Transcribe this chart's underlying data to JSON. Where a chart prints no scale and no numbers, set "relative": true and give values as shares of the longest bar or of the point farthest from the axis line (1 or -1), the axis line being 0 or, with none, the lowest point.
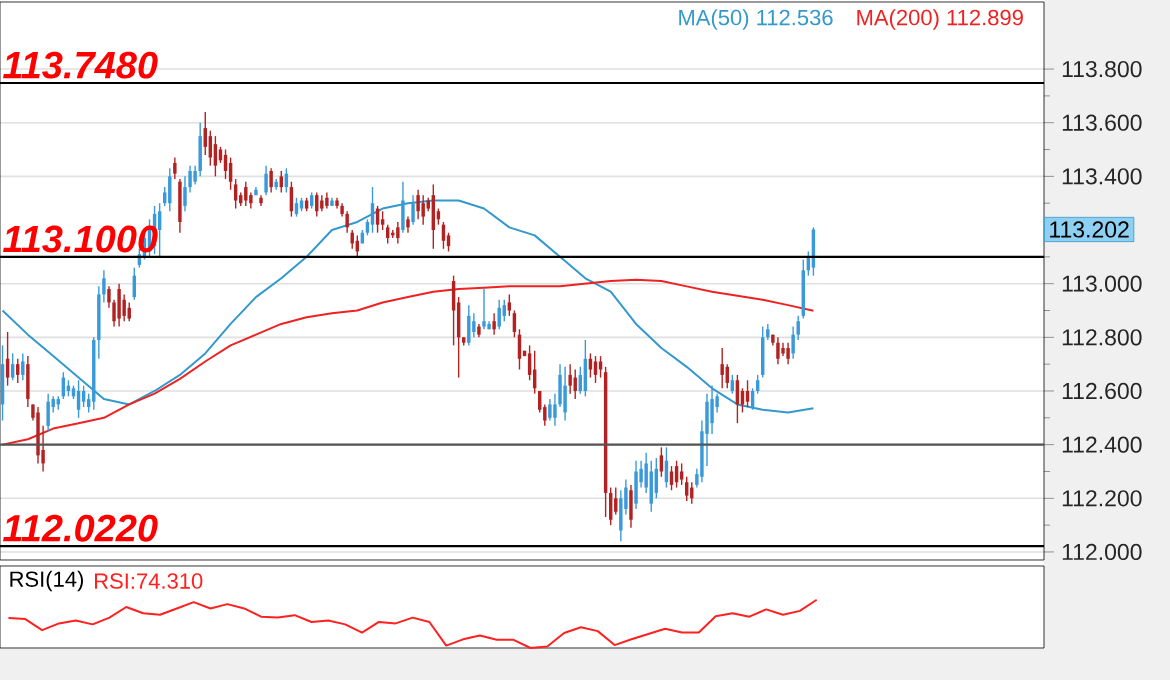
{
  "chart_data": [
    {
      "type": "candlestick",
      "categories": [
        null,
        null,
        null,
        null,
        null,
        null,
        null,
        null,
        null,
        null,
        null,
        null,
        null,
        null,
        null,
        null,
        null,
        null,
        null,
        null,
        null,
        null,
        null,
        null,
        null,
        null,
        null,
        null,
        null,
        null,
        null,
        null,
        null,
        null,
        null,
        null,
        null,
        null,
        null,
        null,
        null,
        null,
        null,
        null,
        null,
        null,
        null,
        null,
        null,
        null,
        null,
        null,
        null,
        null,
        null,
        null,
        null,
        null,
        null,
        null,
        null,
        null,
        null,
        null,
        null,
        null,
        null,
        null,
        null,
        null,
        null,
        null,
        null,
        null,
        null,
        null,
        null,
        null,
        null,
        null,
        null,
        null,
        null,
        null,
        null,
        null,
        null,
        null,
        null,
        null,
        null,
        null,
        null,
        null,
        null,
        null,
        null,
        null,
        null,
        null,
        null,
        null,
        null,
        null,
        null,
        null,
        null,
        null,
        null,
        null,
        null,
        null,
        null,
        null,
        null,
        null,
        null,
        null,
        null,
        null,
        null,
        null,
        null,
        null,
        null,
        null,
        null,
        null,
        null,
        null,
        null,
        null,
        null,
        null,
        null,
        null,
        null,
        null,
        null,
        null,
        null,
        null,
        null,
        null,
        null,
        null,
        null,
        null,
        null,
        null,
        null,
        null,
        null,
        null,
        null,
        null,
        null,
        null,
        null,
        null,
        null,
        null,
        null,
        null,
        null,
        null,
        null,
        null,
        null,
        null,
        null,
        null,
        null,
        null,
        null,
        null,
        null,
        null,
        null,
        null,
        null,
        null,
        null,
        null,
        null,
        null,
        null,
        null,
        null,
        null,
        null,
        null,
        null,
        null,
        null,
        null,
        null,
        null,
        null,
        null,
        null,
        null,
        null,
        null,
        null,
        null
      ],
      "ohlc": [
        [
          112.55,
          112.77,
          112.49,
          112.7
        ],
        [
          112.72,
          112.82,
          112.62,
          112.65
        ],
        [
          112.65,
          112.74,
          112.64,
          112.7
        ],
        [
          112.7,
          112.72,
          112.63,
          112.66
        ],
        [
          112.66,
          112.74,
          112.64,
          112.71
        ],
        [
          112.7,
          112.73,
          112.54,
          112.57
        ],
        [
          112.55,
          112.55,
          112.49,
          112.5
        ],
        [
          112.52,
          112.54,
          112.33,
          112.36
        ],
        [
          112.38,
          112.47,
          112.3,
          112.33
        ],
        [
          112.47,
          112.59,
          112.45,
          112.56
        ],
        [
          112.54,
          112.58,
          112.52,
          112.57
        ],
        [
          112.55,
          112.58,
          112.53,
          112.57
        ],
        [
          112.58,
          112.67,
          112.57,
          112.65
        ],
        [
          112.6,
          112.64,
          112.58,
          112.62
        ],
        [
          112.58,
          112.62,
          112.57,
          112.61
        ],
        [
          112.53,
          112.64,
          112.5,
          112.6
        ],
        [
          112.56,
          112.62,
          112.54,
          112.6
        ],
        [
          112.54,
          112.59,
          112.52,
          112.57
        ],
        [
          112.56,
          112.8,
          112.53,
          112.79
        ],
        [
          112.79,
          112.99,
          112.72,
          112.96
        ],
        [
          112.96,
          113.05,
          112.93,
          113.02
        ],
        [
          112.98,
          112.99,
          112.91,
          112.93
        ],
        [
          112.93,
          112.94,
          112.84,
          112.86
        ],
        [
          112.98,
          113.0,
          112.84,
          112.87
        ],
        [
          112.94,
          112.96,
          112.86,
          112.88
        ],
        [
          112.91,
          112.93,
          112.86,
          112.87
        ],
        [
          112.95,
          113.06,
          112.94,
          113.03
        ],
        [
          113.07,
          113.13,
          113.06,
          113.11
        ],
        [
          113.1,
          113.19,
          113.09,
          113.17
        ],
        [
          113.12,
          113.24,
          113.1,
          113.21
        ],
        [
          113.14,
          113.29,
          113.11,
          113.26
        ],
        [
          113.2,
          113.3,
          113.1,
          113.27
        ],
        [
          113.3,
          113.36,
          113.29,
          113.34
        ],
        [
          113.3,
          113.43,
          113.27,
          113.4
        ],
        [
          113.45,
          113.47,
          113.39,
          113.41
        ],
        [
          113.38,
          113.39,
          113.19,
          113.23
        ],
        [
          113.29,
          113.4,
          113.27,
          113.36
        ],
        [
          113.36,
          113.44,
          113.34,
          113.42
        ],
        [
          113.38,
          113.44,
          113.37,
          113.42
        ],
        [
          113.42,
          113.6,
          113.4,
          113.55
        ],
        [
          113.58,
          113.64,
          113.48,
          113.51
        ],
        [
          113.55,
          113.57,
          113.44,
          113.47
        ],
        [
          113.52,
          113.55,
          113.4,
          113.44
        ],
        [
          113.5,
          113.51,
          113.45,
          113.46
        ],
        [
          113.48,
          113.5,
          113.39,
          113.42
        ],
        [
          113.45,
          113.47,
          113.35,
          113.38
        ],
        [
          113.37,
          113.39,
          113.28,
          113.31
        ],
        [
          113.33,
          113.34,
          113.29,
          113.3
        ],
        [
          113.36,
          113.38,
          113.29,
          113.31
        ],
        [
          113.33,
          113.34,
          113.28,
          113.3
        ],
        [
          113.33,
          113.36,
          113.33,
          113.35
        ],
        [
          113.32,
          113.33,
          113.29,
          113.3
        ],
        [
          113.34,
          113.44,
          113.33,
          113.41
        ],
        [
          113.42,
          113.43,
          113.34,
          113.36
        ],
        [
          113.36,
          113.39,
          113.35,
          113.38
        ],
        [
          113.4,
          113.42,
          113.34,
          113.36
        ],
        [
          113.36,
          113.43,
          113.34,
          113.41
        ],
        [
          113.36,
          113.38,
          113.25,
          113.27
        ],
        [
          113.26,
          113.32,
          113.25,
          113.3
        ],
        [
          113.28,
          113.32,
          113.27,
          113.31
        ],
        [
          113.31,
          113.32,
          113.27,
          113.28
        ],
        [
          113.29,
          113.34,
          113.28,
          113.33
        ],
        [
          113.33,
          113.34,
          113.25,
          113.27
        ],
        [
          113.31,
          113.33,
          113.27,
          113.28
        ],
        [
          113.32,
          113.34,
          113.28,
          113.29
        ],
        [
          113.29,
          113.32,
          113.29,
          113.31
        ],
        [
          113.31,
          113.32,
          113.28,
          113.29
        ],
        [
          113.29,
          113.3,
          113.25,
          113.26
        ],
        [
          113.26,
          113.27,
          113.19,
          113.21
        ],
        [
          113.19,
          113.2,
          113.13,
          113.15
        ],
        [
          113.16,
          113.18,
          113.1,
          113.12
        ],
        [
          113.15,
          113.2,
          113.15,
          113.19
        ],
        [
          113.19,
          113.24,
          113.18,
          113.23
        ],
        [
          113.22,
          113.36,
          113.19,
          113.3
        ],
        [
          113.28,
          113.29,
          113.19,
          113.22
        ],
        [
          113.24,
          113.27,
          113.2,
          113.22
        ],
        [
          113.21,
          113.22,
          113.15,
          113.17
        ],
        [
          113.19,
          113.2,
          113.17,
          113.18
        ],
        [
          113.21,
          113.23,
          113.15,
          113.17
        ],
        [
          113.2,
          113.38,
          113.19,
          113.31
        ],
        [
          113.24,
          113.25,
          113.19,
          113.21
        ],
        [
          113.23,
          113.33,
          113.22,
          113.3
        ],
        [
          113.33,
          113.35,
          113.24,
          113.27
        ],
        [
          113.3,
          113.33,
          113.22,
          113.25
        ],
        [
          113.31,
          113.32,
          113.27,
          113.28
        ],
        [
          113.33,
          113.37,
          113.13,
          113.2
        ],
        [
          113.27,
          113.28,
          113.22,
          113.24
        ],
        [
          113.22,
          113.23,
          113.13,
          113.16
        ],
        [
          113.18,
          113.19,
          113.12,
          113.14
        ],
        [
          113.01,
          113.03,
          112.77,
          112.9
        ],
        [
          112.93,
          112.95,
          112.65,
          112.8
        ],
        [
          112.8,
          112.8,
          112.77,
          112.78
        ],
        [
          112.78,
          112.92,
          112.77,
          112.88
        ],
        [
          112.82,
          112.89,
          112.8,
          112.86
        ],
        [
          112.84,
          112.85,
          112.8,
          112.81
        ],
        [
          112.84,
          112.98,
          112.83,
          112.86
        ],
        [
          112.83,
          112.86,
          112.83,
          112.85
        ],
        [
          112.86,
          112.89,
          112.81,
          112.83
        ],
        [
          112.84,
          112.94,
          112.83,
          112.91
        ],
        [
          112.88,
          112.94,
          112.86,
          112.92
        ],
        [
          112.93,
          112.96,
          112.88,
          112.9
        ],
        [
          112.89,
          112.9,
          112.8,
          112.82
        ],
        [
          112.81,
          112.83,
          112.68,
          112.72
        ],
        [
          112.75,
          112.75,
          112.73,
          112.73
        ],
        [
          112.74,
          112.77,
          112.64,
          112.66
        ],
        [
          112.68,
          112.75,
          112.59,
          112.61
        ],
        [
          112.6,
          112.6,
          112.52,
          112.53
        ],
        [
          112.54,
          112.55,
          112.47,
          112.49
        ],
        [
          112.5,
          112.57,
          112.49,
          112.55
        ],
        [
          112.5,
          112.59,
          112.47,
          112.55
        ],
        [
          112.55,
          112.7,
          112.54,
          112.66
        ],
        [
          112.52,
          112.69,
          112.49,
          112.62
        ],
        [
          112.66,
          112.7,
          112.59,
          112.62
        ],
        [
          112.65,
          112.68,
          112.57,
          112.6
        ],
        [
          112.6,
          112.69,
          112.59,
          112.66
        ],
        [
          112.6,
          112.79,
          112.58,
          112.72
        ],
        [
          112.72,
          112.74,
          112.65,
          112.68
        ],
        [
          112.71,
          112.73,
          112.63,
          112.66
        ],
        [
          112.71,
          112.73,
          112.65,
          112.68
        ],
        [
          112.67,
          112.69,
          112.13,
          112.22
        ],
        [
          112.22,
          112.24,
          112.1,
          112.12
        ],
        [
          112.2,
          112.24,
          112.14,
          112.15
        ],
        [
          112.08,
          112.23,
          112.04,
          112.2
        ],
        [
          112.16,
          112.27,
          112.14,
          112.24
        ],
        [
          112.23,
          112.25,
          112.09,
          112.12
        ],
        [
          112.18,
          112.34,
          112.16,
          112.3
        ],
        [
          112.26,
          112.34,
          112.24,
          112.31
        ],
        [
          112.24,
          112.37,
          112.22,
          112.33
        ],
        [
          112.18,
          112.34,
          112.15,
          112.3
        ],
        [
          112.22,
          112.35,
          112.2,
          112.31
        ],
        [
          112.36,
          112.39,
          112.28,
          112.3
        ],
        [
          112.26,
          112.39,
          112.24,
          112.34
        ],
        [
          112.3,
          112.32,
          112.23,
          112.25
        ],
        [
          112.32,
          112.34,
          112.24,
          112.26
        ],
        [
          112.3,
          112.33,
          112.25,
          112.27
        ],
        [
          112.26,
          112.28,
          112.19,
          112.21
        ],
        [
          112.24,
          112.26,
          112.18,
          112.2
        ],
        [
          112.25,
          112.31,
          112.24,
          112.29
        ],
        [
          112.28,
          112.49,
          112.26,
          112.45
        ],
        [
          112.44,
          112.59,
          112.32,
          112.56
        ],
        [
          112.48,
          112.62,
          112.44,
          112.57
        ],
        [
          112.54,
          112.59,
          112.52,
          112.58
        ],
        [
          112.7,
          112.76,
          112.61,
          112.66
        ],
        [
          112.69,
          112.7,
          112.61,
          112.63
        ],
        [
          112.6,
          112.66,
          112.59,
          112.64
        ],
        [
          112.64,
          112.66,
          112.48,
          112.55
        ],
        [
          112.6,
          112.61,
          112.52,
          112.55
        ],
        [
          112.6,
          112.64,
          112.54,
          112.56
        ],
        [
          112.54,
          112.61,
          112.53,
          112.6
        ],
        [
          112.6,
          112.66,
          112.59,
          112.64
        ],
        [
          112.66,
          112.84,
          112.65,
          112.8
        ],
        [
          112.8,
          112.85,
          112.79,
          112.83
        ],
        [
          112.81,
          112.81,
          112.77,
          112.78
        ],
        [
          112.78,
          112.8,
          112.7,
          112.72
        ],
        [
          112.76,
          112.78,
          112.73,
          112.74
        ],
        [
          112.76,
          112.78,
          112.7,
          112.72
        ],
        [
          112.74,
          112.84,
          112.72,
          112.81
        ],
        [
          112.81,
          112.88,
          112.79,
          112.86
        ],
        [
          112.88,
          113.09,
          112.87,
          113.05
        ],
        [
          113.05,
          113.12,
          113.03,
          113.1
        ],
        [
          113.06,
          113.21,
          113.03,
          113.202
        ],
        null,
        null,
        null,
        null,
        null,
        null,
        null,
        null,
        null,
        null,
        null,
        null,
        null,
        null,
        null,
        null,
        null,
        null,
        null,
        null,
        null,
        null,
        null,
        null,
        null,
        null,
        null,
        null,
        null,
        null,
        null,
        null,
        null,
        null,
        null,
        null,
        null,
        null,
        null,
        null,
        null,
        null,
        null,
        null,
        null
      ],
      "series": [
        {
          "type": "line",
          "name": "MA(50) 112.536",
          "color": "#3399cc",
          "values": [
            112.9,
            null,
            null,
            null,
            null,
            112.81,
            null,
            null,
            null,
            null,
            112.73,
            null,
            null,
            null,
            null,
            112.65,
            null,
            null,
            null,
            null,
            112.57,
            null,
            null,
            null,
            null,
            112.55,
            null,
            null,
            null,
            null,
            112.6,
            null,
            null,
            null,
            null,
            112.66,
            null,
            null,
            null,
            null,
            112.74,
            null,
            null,
            null,
            null,
            112.85,
            null,
            null,
            null,
            null,
            112.95,
            null,
            null,
            null,
            null,
            113.02,
            null,
            null,
            null,
            null,
            113.1,
            null,
            null,
            null,
            null,
            113.2,
            null,
            null,
            null,
            null,
            113.23,
            null,
            null,
            null,
            null,
            113.28,
            null,
            null,
            null,
            null,
            113.3,
            null,
            null,
            null,
            null,
            113.31,
            null,
            null,
            null,
            null,
            113.31,
            null,
            null,
            null,
            null,
            113.28,
            null,
            null,
            null,
            null,
            113.21,
            null,
            null,
            null,
            null,
            113.18,
            null,
            null,
            null,
            null,
            113.1,
            null,
            null,
            null,
            null,
            113.02,
            null,
            null,
            null,
            null,
            112.97,
            null,
            null,
            null,
            null,
            112.85,
            null,
            null,
            null,
            null,
            112.76,
            null,
            null,
            null,
            null,
            112.69,
            null,
            null,
            null,
            null,
            112.61,
            null,
            null,
            null,
            null,
            112.55,
            null,
            null,
            null,
            null,
            112.53,
            null,
            null,
            null,
            null,
            112.52,
            null,
            null,
            null,
            null,
            112.536,
            null,
            null,
            null,
            null,
            null,
            null,
            null,
            null,
            null,
            null,
            null,
            null,
            null,
            null,
            null,
            null,
            null,
            null,
            null,
            null,
            null,
            null,
            null,
            null,
            null,
            null,
            null,
            null,
            null,
            null,
            null,
            null,
            null,
            null,
            null,
            null,
            null,
            null,
            null,
            null,
            null,
            null,
            null,
            null,
            null
          ]
        },
        {
          "type": "line",
          "name": "MA(200) 112.899",
          "color": "#ee2222",
          "values": [
            112.4,
            null,
            null,
            null,
            null,
            112.42,
            null,
            null,
            null,
            null,
            112.46,
            null,
            null,
            null,
            null,
            112.48,
            null,
            null,
            null,
            null,
            112.5,
            null,
            null,
            null,
            null,
            112.55,
            null,
            null,
            null,
            null,
            112.59,
            null,
            null,
            null,
            null,
            112.645,
            null,
            null,
            null,
            null,
            112.71,
            null,
            null,
            null,
            null,
            112.77,
            null,
            null,
            null,
            null,
            112.81,
            null,
            null,
            null,
            null,
            112.85,
            null,
            null,
            null,
            null,
            112.875,
            null,
            null,
            null,
            null,
            112.89,
            null,
            null,
            null,
            null,
            112.9,
            null,
            null,
            null,
            null,
            112.93,
            null,
            null,
            null,
            null,
            112.95,
            null,
            null,
            null,
            null,
            112.97,
            null,
            null,
            null,
            null,
            112.98,
            null,
            null,
            null,
            null,
            112.985,
            null,
            null,
            null,
            null,
            112.99,
            null,
            null,
            null,
            null,
            112.99,
            null,
            null,
            null,
            null,
            112.99,
            null,
            null,
            null,
            null,
            113.0,
            null,
            null,
            null,
            null,
            113.01,
            null,
            null,
            null,
            null,
            113.015,
            null,
            null,
            null,
            null,
            113.01,
            null,
            null,
            null,
            null,
            112.99,
            null,
            null,
            null,
            null,
            112.97,
            null,
            null,
            null,
            null,
            112.955,
            null,
            null,
            null,
            null,
            112.94,
            null,
            null,
            null,
            null,
            112.92,
            null,
            null,
            null,
            null,
            112.899,
            null,
            null,
            null,
            null,
            null,
            null,
            null,
            null,
            null,
            null,
            null,
            null,
            null,
            null,
            null,
            null,
            null,
            null,
            null,
            null,
            null,
            null,
            null,
            null,
            null,
            null,
            null,
            null,
            null,
            null,
            null,
            null,
            null,
            null,
            null,
            null,
            null,
            null,
            null,
            null,
            null,
            null,
            null,
            null,
            null
          ]
        }
      ],
      "ylim": [
        111.97,
        114.05
      ],
      "yticks": [
        {
          "value": 112.0,
          "label": "112.000"
        },
        {
          "value": 112.1,
          "label": null
        },
        {
          "value": 112.2,
          "label": "112.200"
        },
        {
          "value": 112.3,
          "label": null
        },
        {
          "value": 112.4,
          "label": "112.400"
        },
        {
          "value": 112.5,
          "label": null
        },
        {
          "value": 112.6,
          "label": "112.600"
        },
        {
          "value": 112.7,
          "label": null
        },
        {
          "value": 112.8,
          "label": "112.800"
        },
        {
          "value": 112.9,
          "label": null
        },
        {
          "value": 113.0,
          "label": "113.000"
        },
        {
          "value": 113.1,
          "label": null
        },
        {
          "value": 113.2,
          "label": null
        },
        {
          "value": 113.3,
          "label": null
        },
        {
          "value": 113.4,
          "label": "113.400"
        },
        {
          "value": 113.5,
          "label": null
        },
        {
          "value": 113.6,
          "label": "113.600"
        },
        {
          "value": 113.7,
          "label": null
        },
        {
          "value": 113.8,
          "label": "113.800"
        }
      ],
      "grid": "y",
      "legend": "top right",
      "ref_lines": [
        {
          "axis": "y",
          "value": 113.748,
          "label": "113.7480",
          "color": "#000000"
        },
        {
          "axis": "y",
          "value": 113.1,
          "label": "113.1000",
          "color": "#000000"
        },
        {
          "axis": "y",
          "value": 112.022,
          "label": "112.0220",
          "color": "#000000"
        },
        {
          "axis": "y",
          "value": 112.4,
          "color": "#555555"
        }
      ],
      "annotations": [
        "113.202"
      ]
    },
    {
      "type": "line",
      "title": "RSI(14)",
      "relative": true,
      "categories": [
        null,
        null,
        null,
        null,
        null,
        null,
        null,
        null,
        null,
        null,
        null,
        null,
        null,
        null,
        null,
        null,
        null,
        null,
        null,
        null,
        null,
        null,
        null,
        null,
        null,
        null,
        null,
        null,
        null,
        null,
        null,
        null,
        null,
        null,
        null,
        null,
        null,
        null,
        null,
        null,
        null,
        null,
        null,
        null,
        null,
        null,
        null,
        null,
        null,
        null,
        null,
        null,
        null,
        null,
        null,
        null,
        null,
        null,
        null,
        null,
        null,
        null
      ],
      "series": [
        {
          "name": "RSI:74.310",
          "color": "#ff2020",
          "values": [
            0.62,
            0.6,
            0.37,
            0.51,
            0.57,
            0.49,
            0.63,
            0.85,
            0.72,
            0.69,
            0.82,
            0.95,
            0.82,
            0.91,
            0.82,
            0.65,
            0.63,
            0.68,
            0.54,
            0.57,
            0.49,
            0.32,
            0.54,
            0.51,
            0.63,
            0.54,
            0.05,
            0.18,
            0.26,
            0.17,
            0.17,
            0,
            0.03,
            0.31,
            0.43,
            0.35,
            0.06,
            0.18,
            0.29,
            0.4,
            0.32,
            0.32,
            0.66,
            0.72,
            0.65,
            0.8,
            0.69,
            0.77,
            1,
            null,
            null,
            null,
            null,
            null,
            null,
            null,
            null,
            null,
            null,
            null,
            null,
            null
          ]
        }
      ],
      "legend": "top left"
    }
  ]
}
